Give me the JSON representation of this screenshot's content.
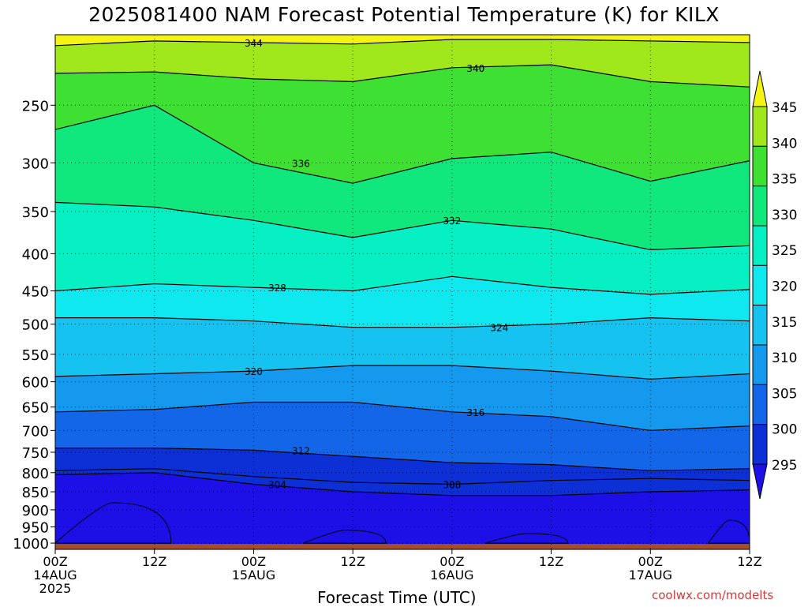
{
  "chart_data": {
    "type": "heatmap",
    "title": "2025081400 NAM Forecast Potential Temperature (K) for KILX",
    "xlabel": "Forecast Time (UTC)",
    "ylabel": "",
    "credit": "coolwx.com/modelts",
    "x_ticks": [
      {
        "t": 0,
        "label": "00Z",
        "sub": "14AUG",
        "sub2": "2025"
      },
      {
        "t": 12,
        "label": "12Z",
        "sub": "",
        "sub2": ""
      },
      {
        "t": 24,
        "label": "00Z",
        "sub": "15AUG",
        "sub2": ""
      },
      {
        "t": 36,
        "label": "12Z",
        "sub": "",
        "sub2": ""
      },
      {
        "t": 48,
        "label": "00Z",
        "sub": "16AUG",
        "sub2": ""
      },
      {
        "t": 60,
        "label": "12Z",
        "sub": "",
        "sub2": ""
      },
      {
        "t": 72,
        "label": "00Z",
        "sub": "17AUG",
        "sub2": ""
      },
      {
        "t": 84,
        "label": "12Z",
        "sub": "",
        "sub2": ""
      }
    ],
    "xlim": [
      0,
      84
    ],
    "y_ticks": [
      250,
      300,
      350,
      400,
      450,
      500,
      550,
      600,
      650,
      700,
      750,
      800,
      850,
      900,
      950,
      1000
    ],
    "ylim_hpa": [
      200,
      1020
    ],
    "y_scale": "log-pressure",
    "colorbar": {
      "levels": [
        295,
        300,
        305,
        310,
        315,
        320,
        325,
        330,
        335,
        340,
        345
      ],
      "labels": [
        "295",
        "300",
        "305",
        "310",
        "315",
        "320",
        "325",
        "330",
        "335",
        "340",
        "345"
      ],
      "colors": [
        "#1c10e6",
        "#0c2fd6",
        "#1366e8",
        "#1599ee",
        "#15c2f0",
        "#10e8f0",
        "#06f0c4",
        "#10e87e",
        "#3fe034",
        "#a0e81c",
        "#f4f412"
      ]
    },
    "surface_color": "#a34d2c",
    "contours": [
      {
        "label": "344",
        "level": 344,
        "p": [
          207,
          204,
          205,
          206,
          203,
          203,
          204,
          205
        ]
      },
      {
        "label": "340",
        "level": 340,
        "p": [
          226,
          225,
          230,
          232,
          222,
          220,
          232,
          236
        ]
      },
      {
        "label": "336",
        "level": 336,
        "p": [
          270,
          250,
          300,
          320,
          296,
          290,
          318,
          298
        ]
      },
      {
        "label": "332",
        "level": 332,
        "p": [
          340,
          345,
          360,
          380,
          360,
          370,
          395,
          390
        ]
      },
      {
        "label": "328",
        "level": 328,
        "p": [
          450,
          440,
          445,
          450,
          430,
          445,
          455,
          448
        ]
      },
      {
        "label": "324",
        "level": 324,
        "p": [
          490,
          490,
          495,
          505,
          505,
          500,
          490,
          495
        ]
      },
      {
        "label": "320",
        "level": 320,
        "p": [
          590,
          585,
          580,
          570,
          570,
          580,
          595,
          585
        ]
      },
      {
        "label": "316",
        "level": 316,
        "p": [
          660,
          655,
          640,
          640,
          660,
          670,
          700,
          690
        ]
      },
      {
        "label": "312",
        "level": 312,
        "p": [
          740,
          740,
          745,
          760,
          775,
          780,
          795,
          790
        ]
      },
      {
        "label": "308",
        "level": 308,
        "p": [
          795,
          790,
          810,
          825,
          830,
          820,
          815,
          820
        ]
      },
      {
        "label": "304",
        "level": 304,
        "p": [
          805,
          800,
          830,
          850,
          860,
          860,
          850,
          845
        ]
      }
    ]
  }
}
